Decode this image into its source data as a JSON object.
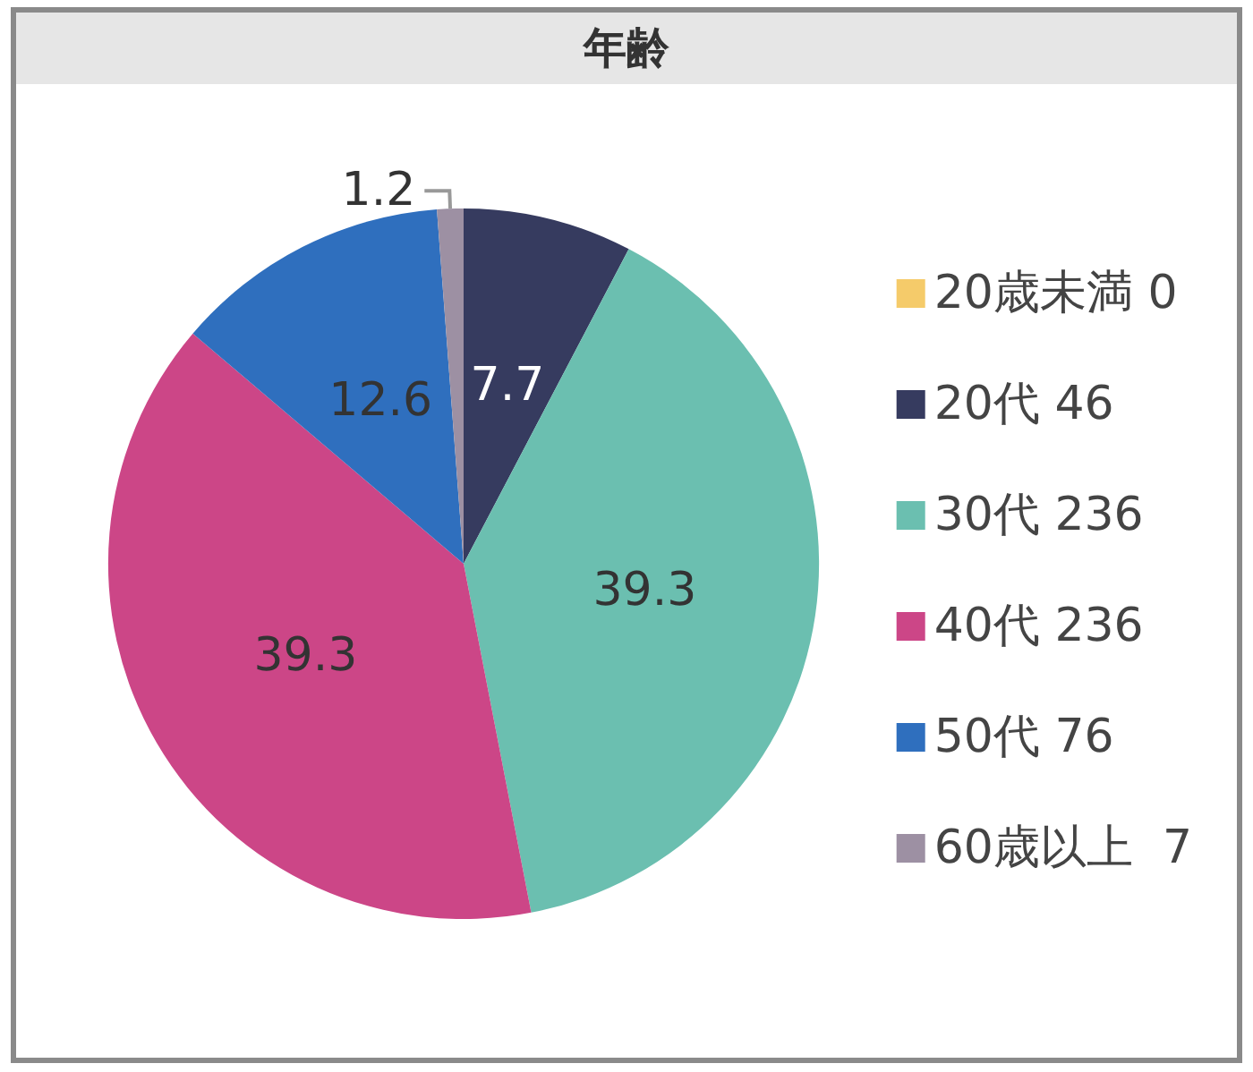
{
  "chart_data": {
    "type": "pie",
    "title": "年齢",
    "categories": [
      "20歳未満 0",
      "20代 46",
      "30代 236",
      "40代 236",
      "50代 76",
      "60歳以上  7"
    ],
    "values": [
      0,
      7.7,
      39.3,
      39.3,
      12.6,
      1.2
    ],
    "data_labels": true,
    "colors": [
      "#f5cb6a",
      "#363b5f",
      "#6bbfb0",
      "#cc4687",
      "#2f6fbe",
      "#9d90a3"
    ],
    "legend": "right"
  }
}
